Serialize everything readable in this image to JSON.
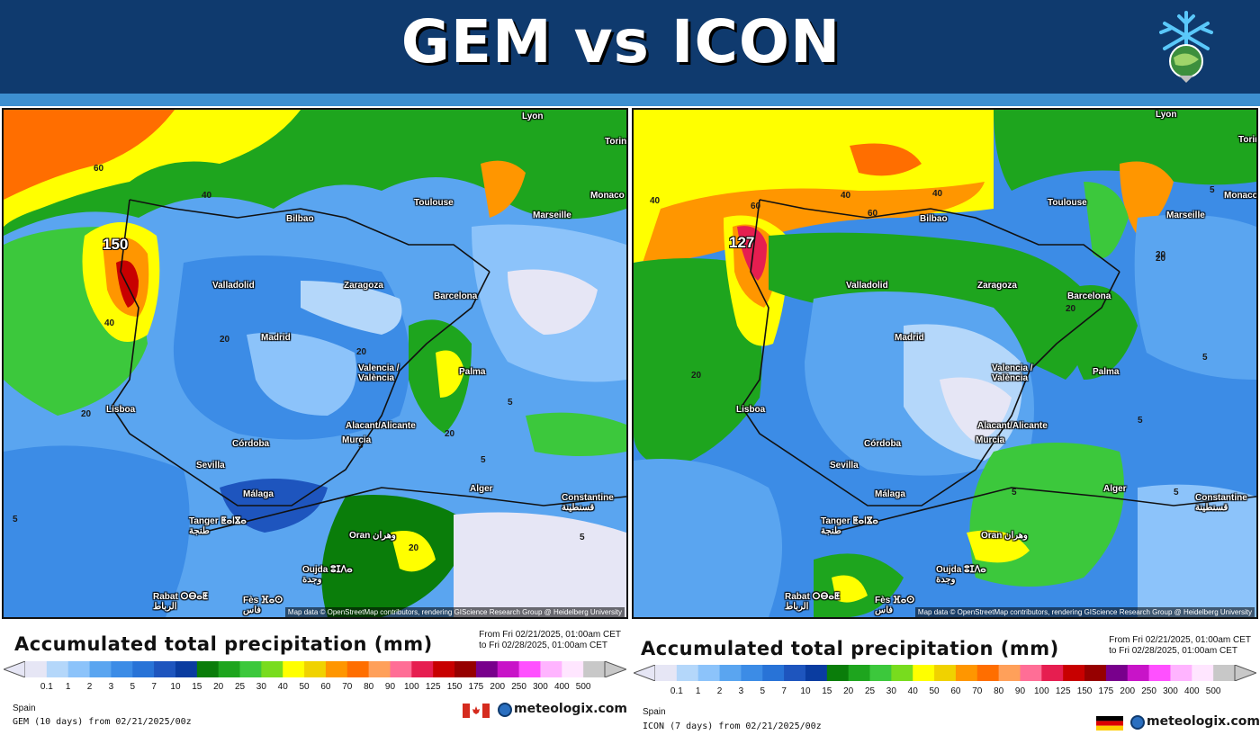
{
  "header": {
    "title": "GEM vs ICON",
    "logo_icon": "snowflake-globe-icon",
    "colors": {
      "background": "#0f3a6e",
      "stripe": "#3d8fd0",
      "title": "#ffffff"
    }
  },
  "legend_scale": [
    "0.1",
    "1",
    "2",
    "3",
    "5",
    "7",
    "10",
    "15",
    "20",
    "25",
    "30",
    "40",
    "50",
    "60",
    "70",
    "80",
    "90",
    "100",
    "125",
    "150",
    "175",
    "200",
    "250",
    "300",
    "400",
    "500"
  ],
  "legend_colors": [
    "#e6e6f5",
    "#b4d7fa",
    "#8cc3fa",
    "#5aa5f0",
    "#3c8ce6",
    "#2873d7",
    "#1e55be",
    "#0a3ca0",
    "#0a7d0a",
    "#1ea51e",
    "#3cc83c",
    "#78dc1e",
    "#ffff00",
    "#f0d200",
    "#ff9600",
    "#ff6e00",
    "#ffa05a",
    "#ff6e96",
    "#e61e50",
    "#c80000",
    "#960000",
    "#78008c",
    "#c814c8",
    "#ff50ff",
    "#ffb4ff",
    "#ffe6ff",
    "#c8c8c8"
  ],
  "panels": [
    {
      "id": "gem",
      "legend_title": "Accumulated total precipitation (mm)",
      "range_from": "From Fri 02/21/2025, 01:00am CET",
      "range_to": "to Fri 02/28/2025, 01:00am CET",
      "region": "Spain",
      "run_info": "GEM (10 days) from 02/21/2025/00z",
      "flag_icon": "canada-flag-icon",
      "brand": "meteologix.com",
      "attribution": "Map data © OpenStreetMap contributors, rendering GIScience Research Group @ Heidelberg University",
      "peak_value": "150",
      "contour_labels": [
        "60",
        "40",
        "20",
        "40",
        "20",
        "20",
        "5",
        "20",
        "5",
        "5",
        "20",
        "5",
        "5"
      ],
      "cities": [
        "Lyon",
        "Torin",
        "Monaco",
        "Toulouse",
        "Marseille",
        "Bilbao",
        "Valladolid",
        "Zaragoza",
        "Barcelona",
        "Madrid",
        "Valencia / València",
        "Palma",
        "Lisboa",
        "Alacant/Alicante",
        "Murcia",
        "Córdoba",
        "Sevilla",
        "Málaga",
        "Alger",
        "Constantine قسنطينة",
        "Tanger ⵟⴰⵏⴵⴰ طنجة",
        "Oran وهران",
        "Oujda ⵓⵊⴷⴰ وجدة",
        "Rabat ⵔⴱⴰⵟ الرباط",
        "Fès ⴼⴰⵙ فاس"
      ]
    },
    {
      "id": "icon",
      "legend_title": "Accumulated total precipitation (mm)",
      "range_from": "From Fri 02/21/2025, 01:00am CET",
      "range_to": "to Fri 02/28/2025, 01:00am CET",
      "region": "Spain",
      "run_info": "ICON (7 days) from 02/21/2025/00z",
      "flag_icon": "germany-flag-icon",
      "brand": "meteologix.com",
      "attribution": "Map data © OpenStreetMap contributors, rendering GIScience Research Group @ Heidelberg University",
      "peak_value": "127",
      "contour_labels": [
        "40",
        "60",
        "40",
        "60",
        "40",
        "20",
        "20",
        "5",
        "20",
        "5",
        "5",
        "20",
        "5",
        "5"
      ],
      "cities": [
        "Lyon",
        "Torin",
        "Monaco",
        "Toulouse",
        "Marseille",
        "Bilbao",
        "Valladolid",
        "Zaragoza",
        "Barcelona",
        "Madrid",
        "Valencia / València",
        "Palma",
        "Lisboa",
        "Alacant/Alicante",
        "Murcia",
        "Córdoba",
        "Sevilla",
        "Málaga",
        "Alger",
        "Constantine قسنطينة",
        "Tanger ⵟⴰⵏⴵⴰ طنجة",
        "Oran وهران",
        "Oujda ⵓⵊⴷⴰ وجدة",
        "Rabat ⵔⴱⴰⵟ الرباط",
        "Fès ⴼⴰⵙ فاس"
      ]
    }
  ]
}
